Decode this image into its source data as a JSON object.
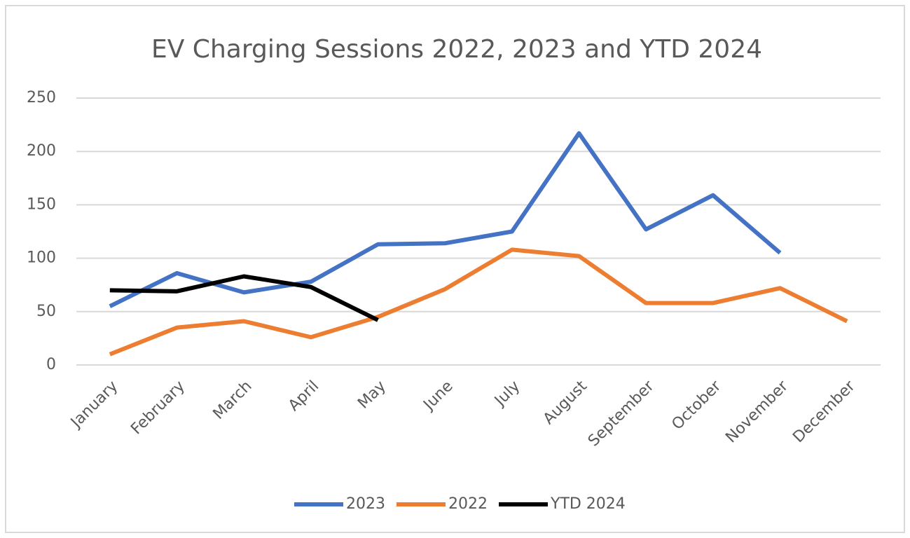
{
  "chart_data": {
    "type": "line",
    "title": "EV Charging Sessions 2022, 2023 and YTD 2024",
    "categories": [
      "January",
      "February",
      "March",
      "April",
      "May",
      "June",
      "July",
      "August",
      "September",
      "October",
      "November",
      "December"
    ],
    "series": [
      {
        "name": "2023",
        "color": "#4472c4",
        "values": [
          55,
          86,
          68,
          78,
          113,
          114,
          125,
          217,
          127,
          159,
          105,
          null
        ]
      },
      {
        "name": "2022",
        "color": "#ed7d31",
        "values": [
          10,
          35,
          41,
          26,
          45,
          71,
          108,
          102,
          58,
          58,
          72,
          41
        ]
      },
      {
        "name": "YTD 2024",
        "color": "#000000",
        "values": [
          70,
          69,
          83,
          73,
          42,
          null,
          null,
          null,
          null,
          null,
          null,
          null
        ]
      }
    ],
    "ylim": [
      0,
      250
    ],
    "yticks": [
      0,
      50,
      100,
      150,
      200,
      250
    ],
    "grid": true,
    "legend": "bottom"
  }
}
